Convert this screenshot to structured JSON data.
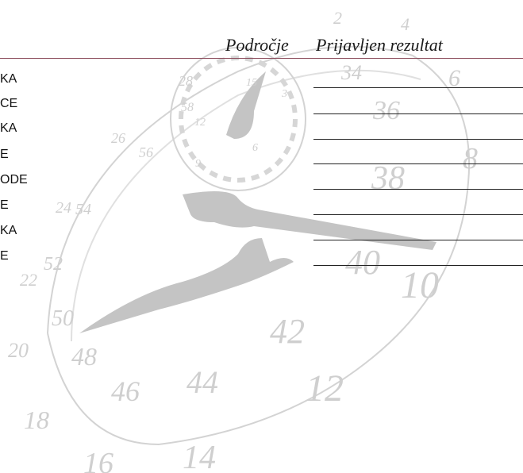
{
  "header": {
    "area_label": "Področje",
    "result_label": "Prijavljen rezultat"
  },
  "rows": [
    {
      "label": "KA"
    },
    {
      "label": "CE"
    },
    {
      "label": "KA"
    },
    {
      "label": "E"
    },
    {
      "label": "ODE"
    },
    {
      "label": "E"
    },
    {
      "label": "KA"
    },
    {
      "label": "E"
    }
  ],
  "watermark": {
    "icon": "stopwatch-icon",
    "color": "#c8c8c8",
    "numbers": [
      "2",
      "4",
      "6",
      "8",
      "10",
      "12",
      "14",
      "16",
      "18",
      "20",
      "22",
      "24",
      "26",
      "28",
      "34",
      "36",
      "38",
      "40",
      "42",
      "44",
      "46",
      "48",
      "50",
      "52",
      "54",
      "56",
      "58",
      "15",
      "3",
      "6",
      "9",
      "12"
    ]
  }
}
